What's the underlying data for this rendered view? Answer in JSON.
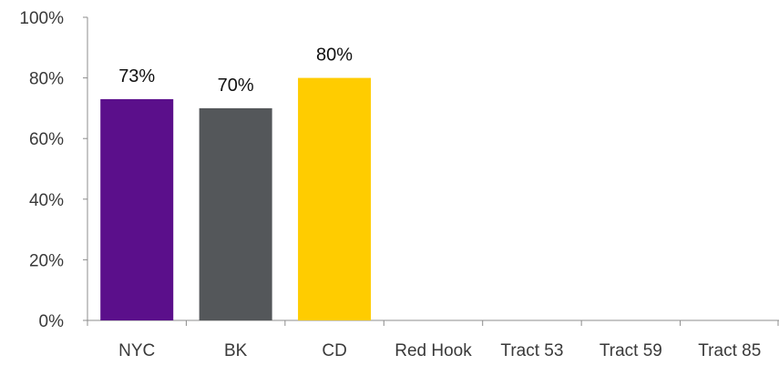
{
  "chart_data": {
    "type": "bar",
    "title": "",
    "xlabel": "",
    "ylabel": "",
    "categories": [
      "NYC",
      "BK",
      "CD",
      "Red Hook",
      "Tract 53",
      "Tract 59",
      "Tract 85"
    ],
    "values": [
      73,
      70,
      80,
      null,
      null,
      null,
      null
    ],
    "data_labels": [
      "73%",
      "70%",
      "80%",
      "",
      "",
      "",
      ""
    ],
    "colors": [
      "#5b0f8b",
      "#54575a",
      "#ffcc00",
      "",
      "",
      "",
      ""
    ],
    "ylim": [
      0,
      100
    ],
    "y_ticks": [
      0,
      20,
      40,
      60,
      80,
      100
    ],
    "y_tick_labels": [
      "0%",
      "20%",
      "40%",
      "60%",
      "80%",
      "100%"
    ],
    "grid": false,
    "legend": "none"
  }
}
